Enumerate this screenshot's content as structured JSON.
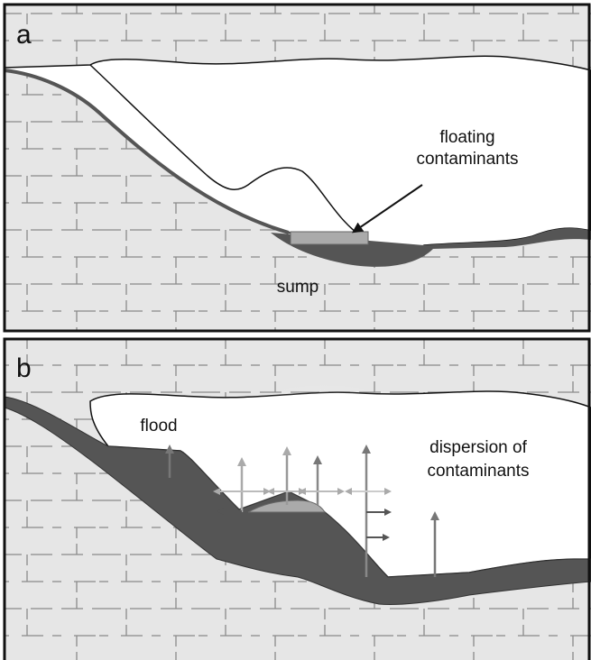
{
  "panel_a": {
    "label": "a",
    "floating_label": [
      "floating",
      "contaminants"
    ],
    "sump_label": "sump"
  },
  "panel_b": {
    "label": "b",
    "flood_label": "flood",
    "dispersion_label": [
      "dispersion of",
      "contaminants"
    ]
  }
}
